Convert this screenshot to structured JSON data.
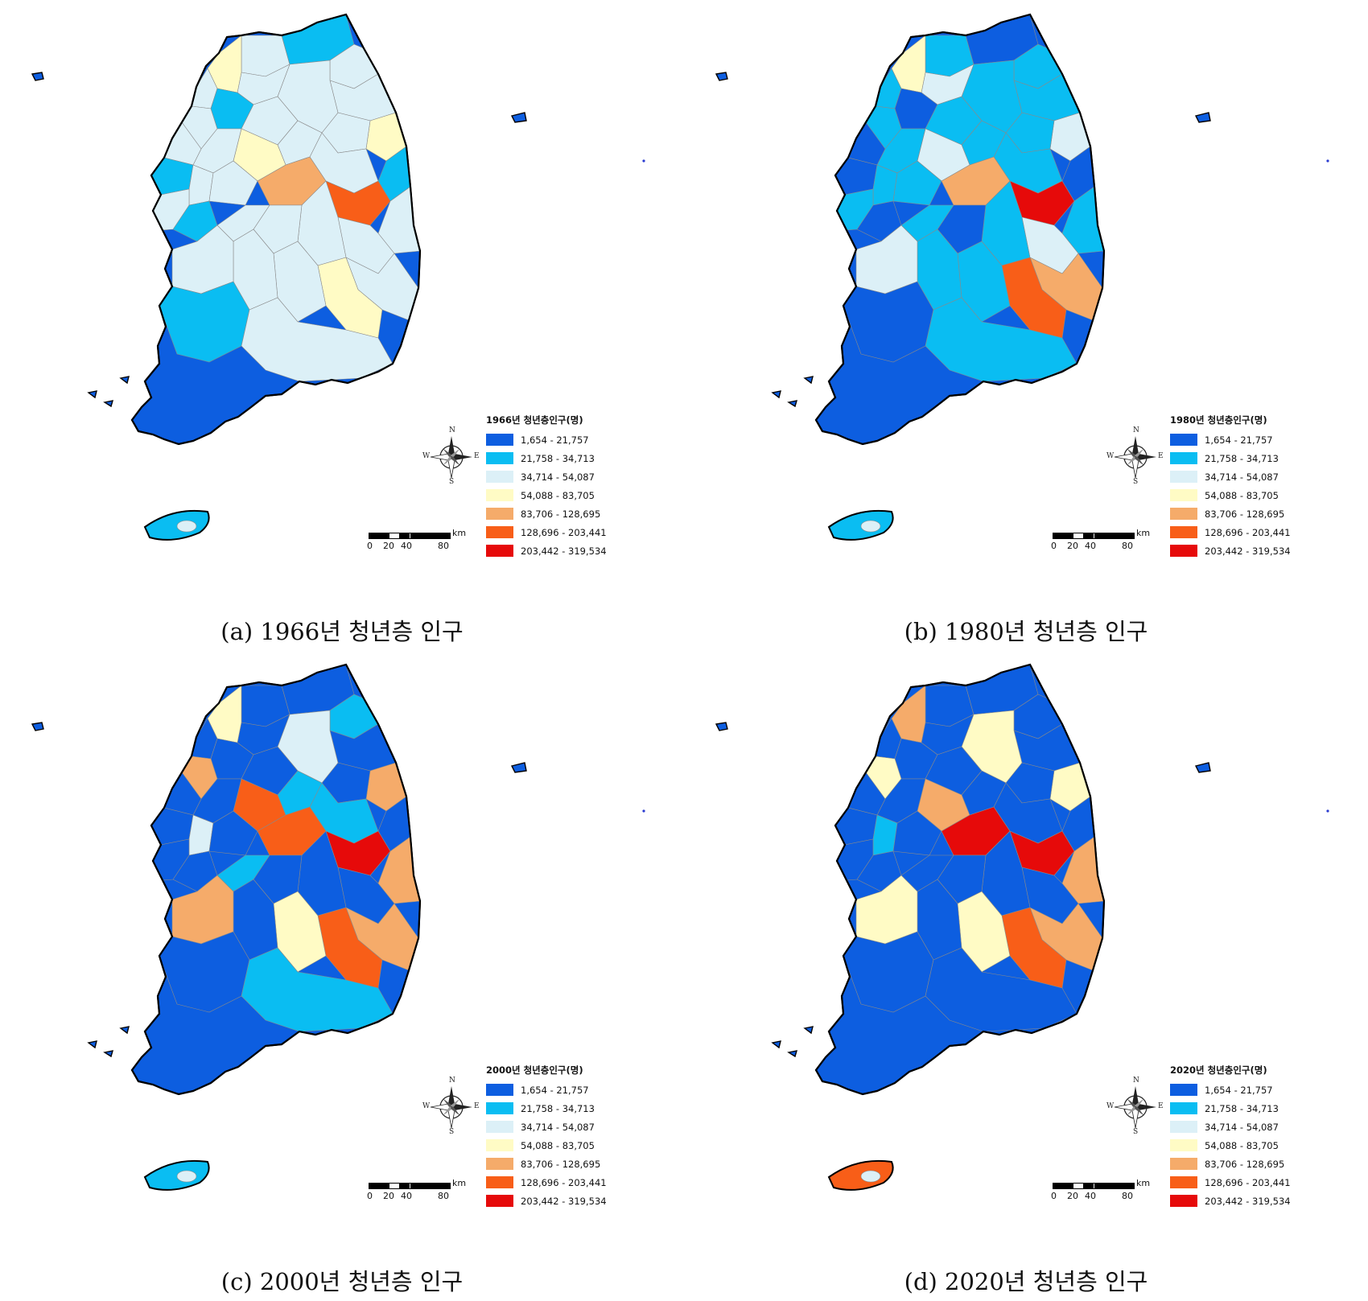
{
  "legend_ranges": [
    "1,654 - 21,757",
    "21,758 - 34,713",
    "34,714 - 54,087",
    "54,088 - 83,705",
    "83,706 - 128,695",
    "128,696 - 203,441",
    "203,442 - 319,534"
  ],
  "legend_colors": [
    "#0d5ee0",
    "#0abdf2",
    "#dcf0f7",
    "#fffbc5",
    "#f5ab6a",
    "#f85e18",
    "#e60a0a"
  ],
  "compass": {
    "north": "N",
    "south": "S",
    "east": "E",
    "west": "W"
  },
  "scale": {
    "unit": "km",
    "ticks": [
      "0",
      "20",
      "40",
      "80"
    ]
  },
  "panels": [
    {
      "legend_title": "1966년 청년층인구(명)",
      "caption": "(a) 1966년 청년층 인구",
      "icon": "choropleth-map-icon",
      "region_classes": [
        2,
        1,
        2,
        2,
        3,
        2,
        1,
        2,
        2,
        2,
        3,
        2,
        1,
        2,
        2,
        2,
        3,
        2,
        2,
        1,
        2,
        2,
        4,
        5,
        2,
        2,
        2,
        2,
        2,
        1,
        2,
        2,
        3,
        2,
        2,
        2,
        1,
        2
      ],
      "jeju_class": 1
    },
    {
      "legend_title": "1980년 청년층인구(명)",
      "caption": "(b) 1980년 청년층 인구",
      "icon": "choropleth-map-icon",
      "region_classes": [
        1,
        0,
        1,
        1,
        2,
        1,
        0,
        1,
        1,
        2,
        3,
        1,
        0,
        1,
        1,
        1,
        2,
        1,
        0,
        0,
        1,
        1,
        4,
        6,
        1,
        2,
        1,
        0,
        1,
        0,
        1,
        4,
        5,
        1,
        1,
        2,
        0,
        1
      ],
      "jeju_class": 1
    },
    {
      "legend_title": "2000년 청년층인구(명)",
      "caption": "(c) 2000년 청년층 인구",
      "icon": "choropleth-map-icon",
      "region_classes": [
        0,
        0,
        1,
        0,
        4,
        0,
        0,
        1,
        2,
        0,
        3,
        0,
        0,
        4,
        0,
        1,
        5,
        0,
        0,
        0,
        2,
        0,
        5,
        6,
        4,
        0,
        0,
        0,
        1,
        0,
        0,
        4,
        5,
        3,
        0,
        4,
        0,
        1
      ],
      "jeju_class": 1
    },
    {
      "legend_title": "2020년 청년층인구(명)",
      "caption": "(d) 2020년 청년층 인구",
      "icon": "choropleth-map-icon",
      "region_classes": [
        0,
        0,
        0,
        0,
        3,
        0,
        0,
        0,
        3,
        0,
        4,
        0,
        0,
        3,
        0,
        0,
        4,
        0,
        0,
        0,
        1,
        0,
        6,
        6,
        4,
        0,
        0,
        0,
        0,
        0,
        0,
        4,
        5,
        3,
        0,
        3,
        0,
        0
      ],
      "jeju_class": 5
    }
  ]
}
